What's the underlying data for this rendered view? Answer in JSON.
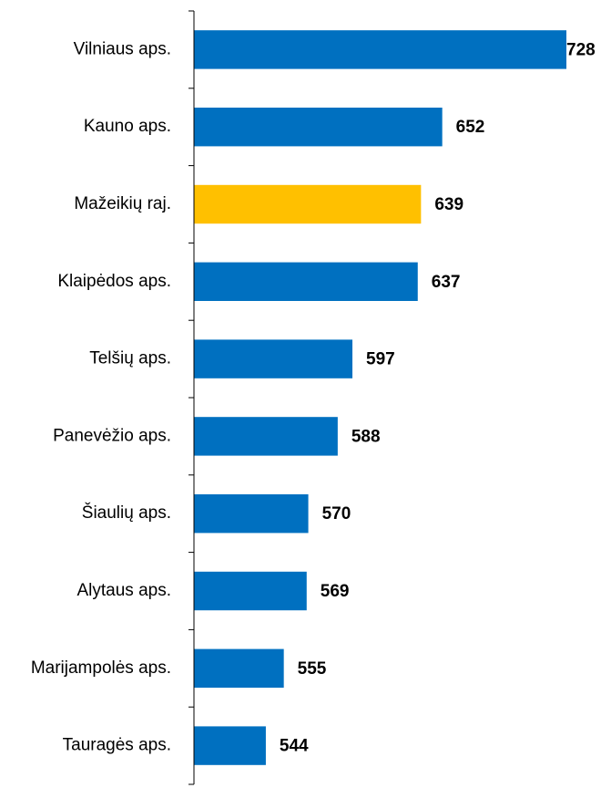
{
  "chart_data": {
    "type": "bar",
    "orientation": "horizontal",
    "categories": [
      "Vilniaus aps.",
      "Kauno aps.",
      "Mažeikių raj.",
      "Klaipėdos aps.",
      "Telšių aps.",
      "Panevėžio aps.",
      "Šiaulių aps.",
      "Alytaus aps.",
      "Marijampolės aps.",
      "Tauragės aps."
    ],
    "values": [
      728,
      652,
      639,
      637,
      597,
      588,
      570,
      569,
      555,
      544
    ],
    "colors": [
      "#0070c0",
      "#0070c0",
      "#ffc000",
      "#0070c0",
      "#0070c0",
      "#0070c0",
      "#0070c0",
      "#0070c0",
      "#0070c0",
      "#0070c0"
    ],
    "xlim": [
      500,
      728
    ]
  }
}
